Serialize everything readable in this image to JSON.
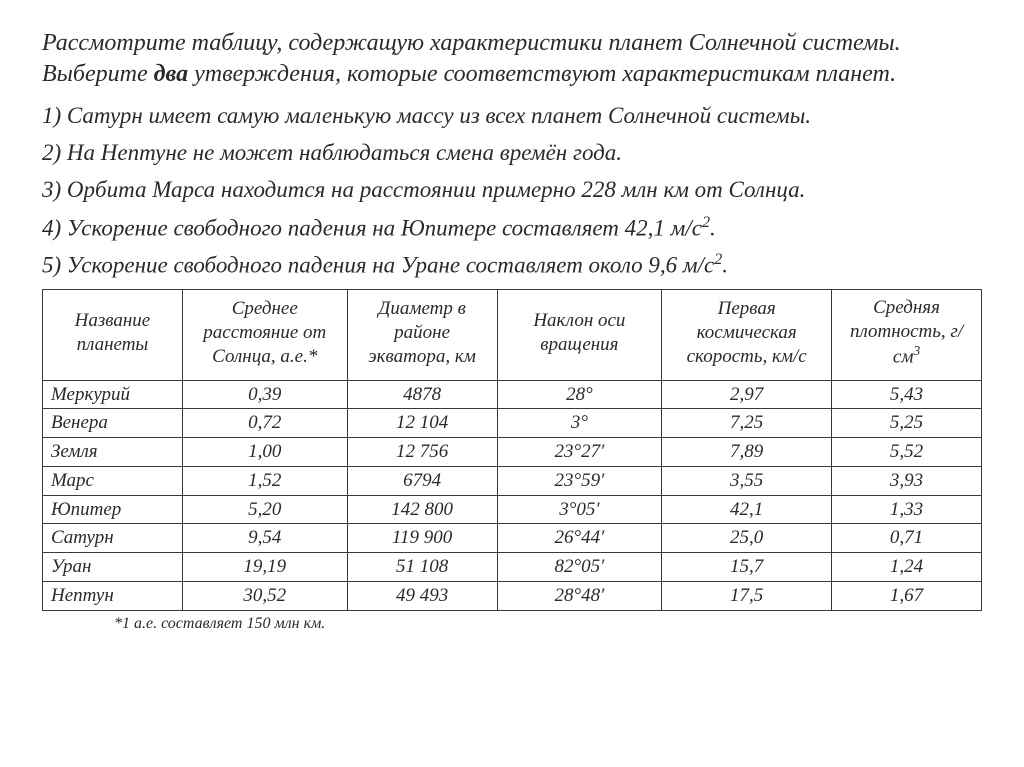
{
  "intro": {
    "part1": "Рассмотрите таблицу, содержащую характеристики планет Солнечной системы. Выберите ",
    "bold": "два",
    "part2": " утверждения, которые соответствуют характеристикам планет."
  },
  "statements": [
    "1)  Сатурн имеет самую маленькую массу из всех планет Солнечной системы.",
    "2) На Нептуне не может наблюдаться смена времён года.",
    "3) Орбита Марса находится на расстоянии примерно 228 млн км от Солнца.",
    "4) Ускорение свободного падения на Юпитере составляет 42,1 м/с",
    "5) Ускорение свободного падения на Уране составляет около 9,6 м/с"
  ],
  "stmt_sup": "2",
  "stmt_tail": ".",
  "table": {
    "columns": [
      "Название планеты",
      "Среднее расстояние от Солнца, а.е.*",
      "Диаметр в районе экватора, км",
      "Наклон оси вращения",
      "Первая космическая скорость, км/с",
      "Средняя плотность, г/см"
    ],
    "dens_sup": "3",
    "rows": [
      {
        "name": "Меркурий",
        "dist": "0,39",
        "diam": "4878",
        "tilt": "28°",
        "esc": "2,97",
        "dens": "5,43"
      },
      {
        "name": "Венера",
        "dist": "0,72",
        "diam": "12 104",
        "tilt": "3°",
        "esc": "7,25",
        "dens": "5,25"
      },
      {
        "name": "Земля",
        "dist": "1,00",
        "diam": "12 756",
        "tilt": "23°27′",
        "esc": "7,89",
        "dens": "5,52"
      },
      {
        "name": "Марс",
        "dist": "1,52",
        "diam": "6794",
        "tilt": "23°59′",
        "esc": "3,55",
        "dens": "3,93"
      },
      {
        "name": "Юпитер",
        "dist": "5,20",
        "diam": "142 800",
        "tilt": "3°05′",
        "esc": "42,1",
        "dens": "1,33"
      },
      {
        "name": "Сатурн",
        "dist": "9,54",
        "diam": "119 900",
        "tilt": "26°44′",
        "esc": "25,0",
        "dens": "0,71"
      },
      {
        "name": "Уран",
        "dist": "19,19",
        "diam": "51 108",
        "tilt": "82°05′",
        "esc": "15,7",
        "dens": "1,24"
      },
      {
        "name": "Нептун",
        "dist": "30,52",
        "diam": "49 493",
        "tilt": "28°48′",
        "esc": "17,5",
        "dens": "1,67"
      }
    ]
  },
  "footnote": "*1 а.е. составляет 150 млн км.",
  "style": {
    "text_color": "#2a2a2a",
    "bg_color": "#ffffff",
    "border_color": "#3a3a3a",
    "intro_fontsize": 24,
    "stmt_fontsize": 23,
    "cell_fontsize": 19,
    "footnote_fontsize": 16,
    "font_family": "Times New Roman"
  }
}
